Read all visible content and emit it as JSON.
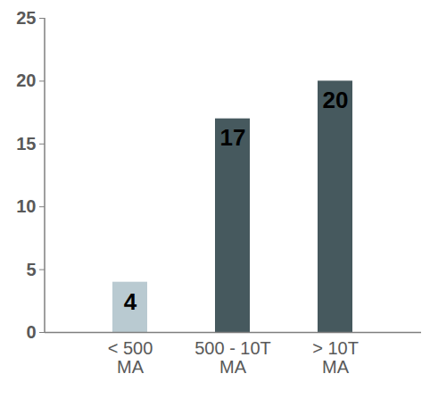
{
  "chart_data": {
    "type": "bar",
    "categories": [
      "< 500 MA",
      "500 - 10T MA",
      "> 10T MA"
    ],
    "values": [
      4,
      17,
      20
    ],
    "colors": [
      "#b9cad1",
      "#46595e",
      "#46595e"
    ],
    "ylim": [
      0,
      25
    ],
    "yticks": [
      0,
      5,
      10,
      15,
      20,
      25
    ],
    "grid": false,
    "data_labels": true
  }
}
